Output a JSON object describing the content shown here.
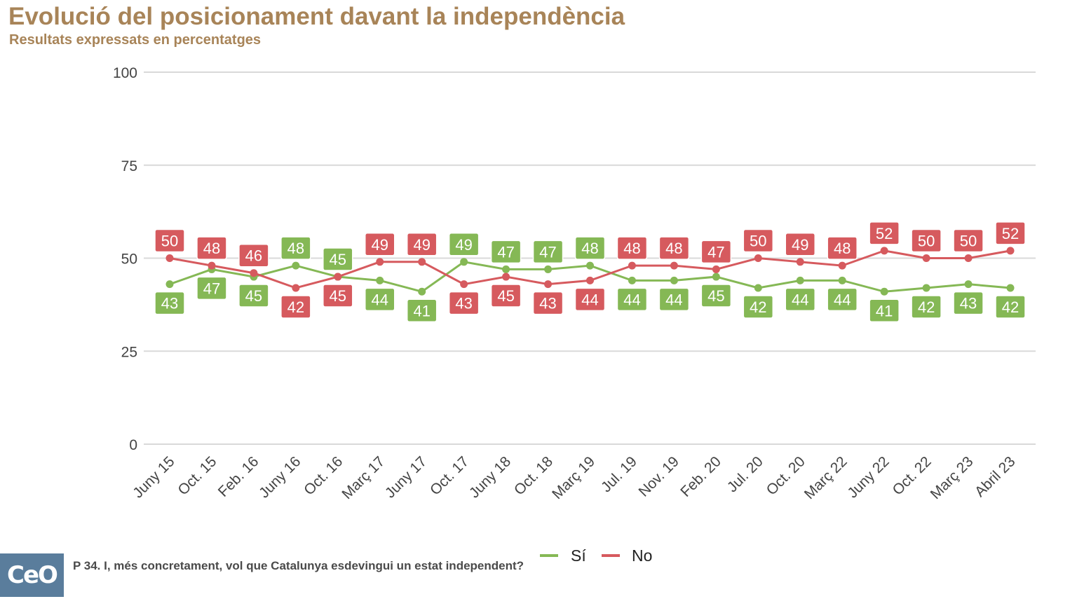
{
  "header": {
    "title": "Evolució del posicionament davant la independència",
    "subtitle": "Resultats expressats en percentatges"
  },
  "footer": {
    "logo_text": "CeO",
    "question": "P 34. I, més concretament, vol que Catalunya esdevingui un estat independent?"
  },
  "colors": {
    "si": "#85b855",
    "no": "#d65a5e",
    "title": "#a88458",
    "grid": "#d9d9d9"
  },
  "chart_data": {
    "type": "line",
    "title": "Evolució del posicionament davant la independència",
    "subtitle": "Resultats expressats en percentatges",
    "xlabel": "",
    "ylabel": "",
    "ylim": [
      0,
      100
    ],
    "yticks": [
      0,
      25,
      50,
      75,
      100
    ],
    "grid": true,
    "legend_position": "bottom",
    "categories": [
      "Juny 15",
      "Oct. 15",
      "Feb. 16",
      "Juny 16",
      "Oct. 16",
      "Març 17",
      "Juny 17",
      "Oct. 17",
      "Juny 18",
      "Oct. 18",
      "Març 19",
      "Jul. 19",
      "Nov. 19",
      "Feb. 20",
      "Jul. 20",
      "Oct. 20",
      "Març 22",
      "Juny 22",
      "Oct. 22",
      "Març 23",
      "Abril 23"
    ],
    "series": [
      {
        "name": "Sí",
        "color": "#85b855",
        "values": [
          43,
          47,
          45,
          48,
          45,
          44,
          41,
          49,
          47,
          47,
          48,
          44,
          44,
          45,
          42,
          44,
          44,
          41,
          42,
          43,
          42
        ]
      },
      {
        "name": "No",
        "color": "#d65a5e",
        "values": [
          50,
          48,
          46,
          42,
          45,
          49,
          49,
          43,
          45,
          43,
          44,
          48,
          48,
          47,
          50,
          49,
          48,
          52,
          50,
          50,
          52
        ]
      }
    ]
  }
}
